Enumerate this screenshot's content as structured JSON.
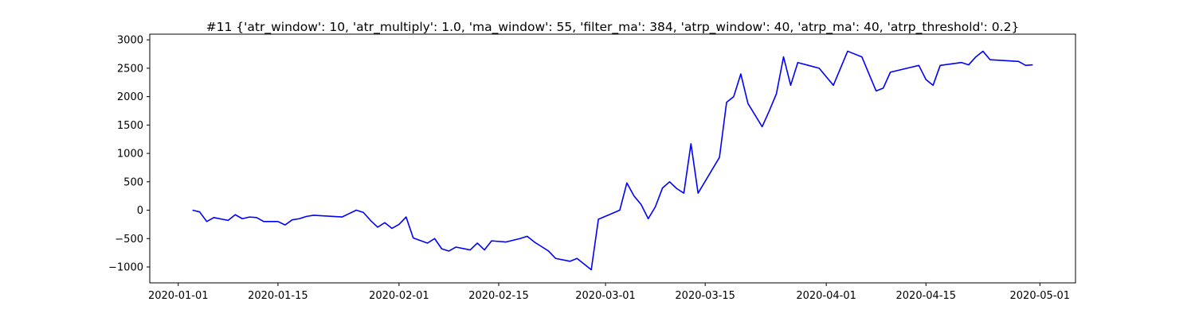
{
  "chart_data": {
    "type": "line",
    "title": "#11 {'atr_window': 10, 'atr_multiply': 1.0, 'ma_window': 55, 'filter_ma': 384, 'atrp_window': 40, 'atrp_ma': 40, 'atrp_threshold': 0.2}",
    "color": "#0000ff",
    "x": [
      "2020-01-03",
      "2020-01-04",
      "2020-01-05",
      "2020-01-06",
      "2020-01-08",
      "2020-01-09",
      "2020-01-10",
      "2020-01-11",
      "2020-01-12",
      "2020-01-13",
      "2020-01-15",
      "2020-01-16",
      "2020-01-17",
      "2020-01-18",
      "2020-01-19",
      "2020-01-20",
      "2020-01-24",
      "2020-01-25",
      "2020-01-26",
      "2020-01-27",
      "2020-01-28",
      "2020-01-29",
      "2020-01-30",
      "2020-01-31",
      "2020-02-01",
      "2020-02-02",
      "2020-02-03",
      "2020-02-05",
      "2020-02-06",
      "2020-02-07",
      "2020-02-08",
      "2020-02-09",
      "2020-02-11",
      "2020-02-12",
      "2020-02-13",
      "2020-02-14",
      "2020-02-16",
      "2020-02-18",
      "2020-02-19",
      "2020-02-20",
      "2020-02-21",
      "2020-02-22",
      "2020-02-23",
      "2020-02-25",
      "2020-02-26",
      "2020-02-27",
      "2020-02-28",
      "2020-02-29",
      "2020-03-03",
      "2020-03-04",
      "2020-03-05",
      "2020-03-06",
      "2020-03-07",
      "2020-03-08",
      "2020-03-09",
      "2020-03-10",
      "2020-03-11",
      "2020-03-12",
      "2020-03-13",
      "2020-03-14",
      "2020-03-17",
      "2020-03-18",
      "2020-03-19",
      "2020-03-20",
      "2020-03-21",
      "2020-03-23",
      "2020-03-24",
      "2020-03-25",
      "2020-03-26",
      "2020-03-27",
      "2020-03-28",
      "2020-03-31",
      "2020-04-01",
      "2020-04-02",
      "2020-04-04",
      "2020-04-06",
      "2020-04-07",
      "2020-04-08",
      "2020-04-09",
      "2020-04-10",
      "2020-04-14",
      "2020-04-15",
      "2020-04-16",
      "2020-04-17",
      "2020-04-20",
      "2020-04-21",
      "2020-04-22",
      "2020-04-23",
      "2020-04-24",
      "2020-04-28",
      "2020-04-29",
      "2020-04-30"
    ],
    "values": [
      0,
      -30,
      -200,
      -130,
      -180,
      -80,
      -150,
      -120,
      -130,
      -200,
      -200,
      -260,
      -170,
      -150,
      -110,
      -90,
      -120,
      -60,
      0,
      -40,
      -180,
      -300,
      -220,
      -320,
      -250,
      -120,
      -490,
      -580,
      -500,
      -680,
      -720,
      -650,
      -700,
      -580,
      -700,
      -540,
      -560,
      -500,
      -460,
      -560,
      -640,
      -720,
      -850,
      -900,
      -850,
      -950,
      -1050,
      -160,
      0,
      480,
      250,
      100,
      -150,
      60,
      390,
      500,
      380,
      300,
      1170,
      300,
      930,
      1900,
      2000,
      2400,
      1880,
      1470,
      1750,
      2050,
      2700,
      2200,
      2600,
      2500,
      2350,
      2200,
      2800,
      2700,
      2400,
      2100,
      2150,
      2430,
      2550,
      2300,
      2200,
      2550,
      2600,
      2560,
      2700,
      2800,
      2650,
      2620,
      2550,
      2560
    ],
    "xlim": [
      "2019-12-28",
      "2020-05-06"
    ],
    "xticks": [
      "2020-01-01",
      "2020-01-15",
      "2020-02-01",
      "2020-02-15",
      "2020-03-01",
      "2020-03-15",
      "2020-04-01",
      "2020-04-15",
      "2020-05-01"
    ],
    "ylim": [
      -1280,
      3100
    ],
    "yticks": [
      {
        "value": -1000,
        "label": "−1000"
      },
      {
        "value": -500,
        "label": "−500"
      },
      0,
      500,
      1000,
      1500,
      2000,
      2500,
      3000
    ]
  }
}
